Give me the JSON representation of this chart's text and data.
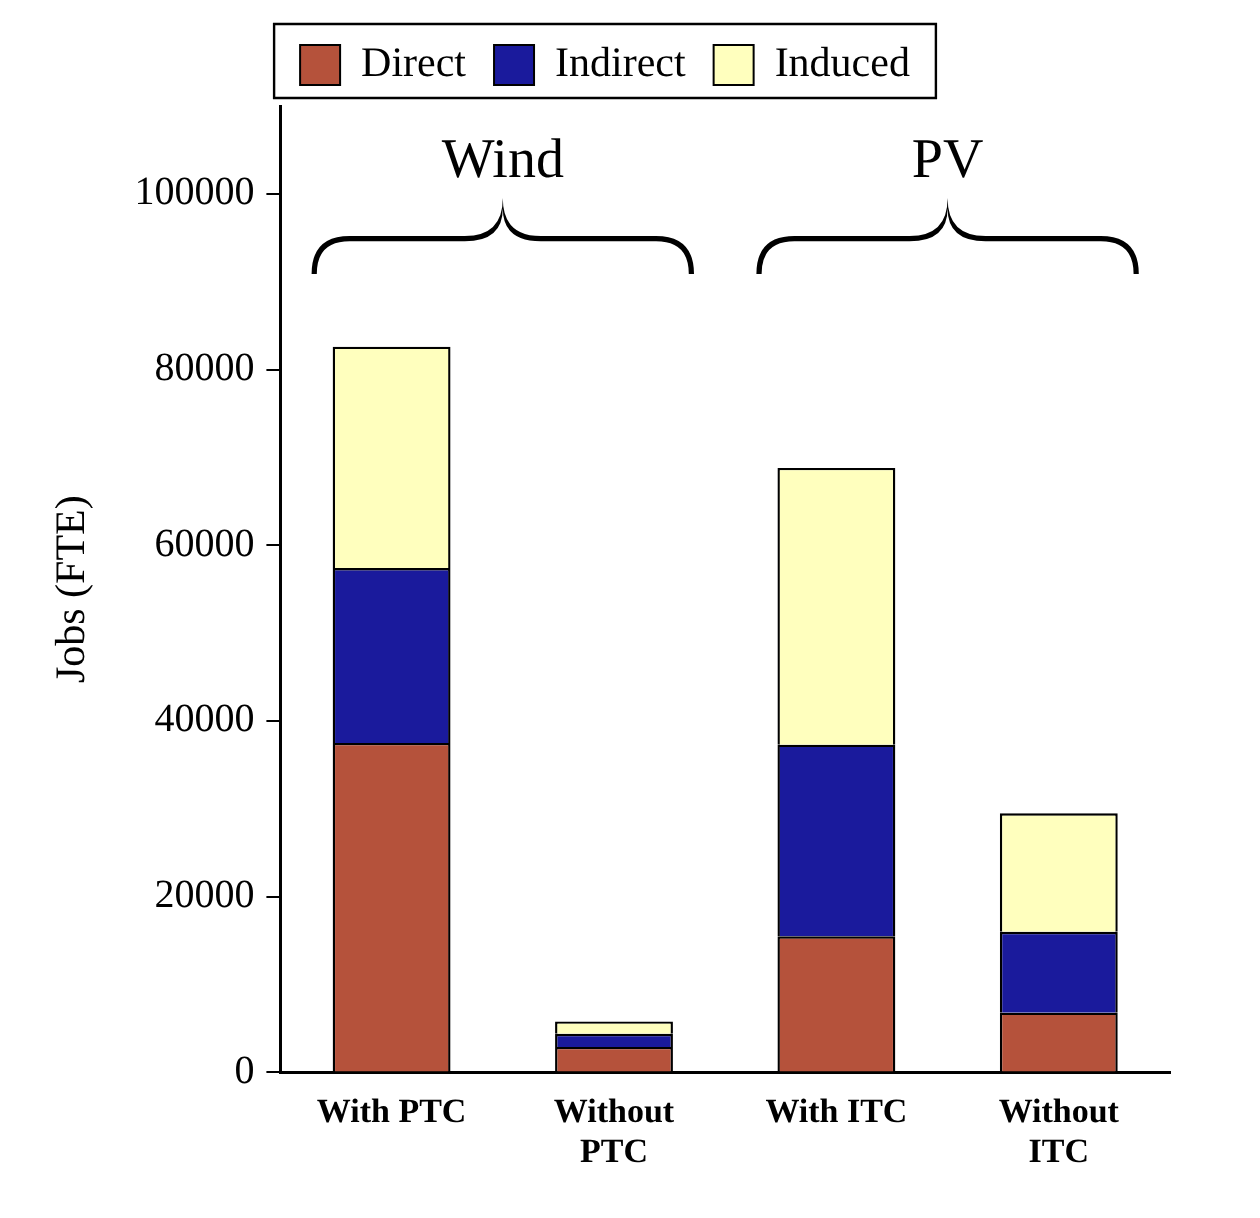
{
  "chart_data": {
    "type": "bar",
    "stacked": true,
    "ylabel": "Jobs (FTE)",
    "categories": [
      "With PTC",
      "Without PTC",
      "With ITC",
      "Without ITC"
    ],
    "series": [
      {
        "name": "Direct",
        "color": "#b5523b",
        "values": [
          37500,
          2900,
          15500,
          6800
        ]
      },
      {
        "name": "Indirect",
        "color": "#1a1a9c",
        "values": [
          19900,
          1500,
          21800,
          9200
        ]
      },
      {
        "name": "Induced",
        "color": "#ffffbe",
        "values": [
          25200,
          1400,
          31500,
          13500
        ]
      }
    ],
    "ylim": [
      0,
      110000
    ],
    "yticks": [
      0,
      20000,
      40000,
      60000,
      80000,
      100000
    ],
    "grid": false,
    "legend": "top",
    "annotations": [
      "Wind",
      "PV"
    ]
  }
}
